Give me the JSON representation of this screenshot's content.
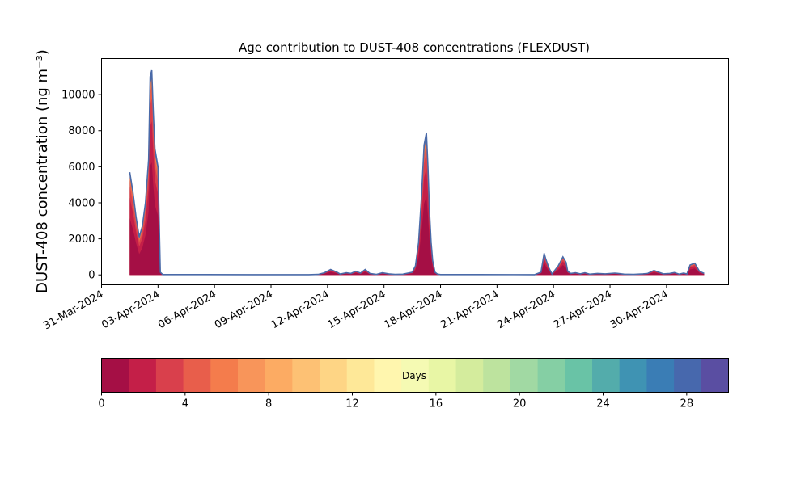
{
  "chart_data": {
    "type": "area",
    "title": "Age contribution to DUST-408 concentrations (FLEXDUST)",
    "ylabel": "DUST-408 concentration (ng m⁻³)",
    "xlabel": "",
    "xlim": [
      "2024-03-31T00:00",
      "2024-05-03T07:00"
    ],
    "ylim": [
      -550,
      12000
    ],
    "y_ticks": [
      0,
      2000,
      4000,
      6000,
      8000,
      10000
    ],
    "x_ticks": [
      "2024-03-31",
      "2024-04-03",
      "2024-04-06",
      "2024-04-09",
      "2024-04-12",
      "2024-04-15",
      "2024-04-18",
      "2024-04-21",
      "2024-04-24",
      "2024-04-27",
      "2024-04-30"
    ],
    "x_tick_labels": [
      "31-Mar-2024",
      "03-Apr-2024",
      "06-Apr-2024",
      "09-Apr-2024",
      "12-Apr-2024",
      "15-Apr-2024",
      "18-Apr-2024",
      "21-Apr-2024",
      "24-Apr-2024",
      "27-Apr-2024",
      "30-Apr-2024"
    ],
    "total_outline_color": "#4a6aa8",
    "series_layers": [
      {
        "age_days": "0-1",
        "color": "#a50f45",
        "share": 0.55
      },
      {
        "age_days": "1-2",
        "color": "#c41f48",
        "share": 0.2
      },
      {
        "age_days": "2-3",
        "color": "#d9404c",
        "share": 0.11
      },
      {
        "age_days": "3-4",
        "color": "#e85e4b",
        "share": 0.06
      },
      {
        "age_days": "4-5",
        "color": "#f47c4c",
        "share": 0.04
      },
      {
        "age_days": "5-30",
        "color": "#4a6aa8",
        "share": 0.04
      }
    ],
    "series_total": {
      "x": [
        "2024-04-01T12:00",
        "2024-04-01T16:00",
        "2024-04-01T20:00",
        "2024-04-02T00:00",
        "2024-04-02T04:00",
        "2024-04-02T08:00",
        "2024-04-02T12:00",
        "2024-04-02T14:00",
        "2024-04-02T16:00",
        "2024-04-02T18:00",
        "2024-04-02T20:00",
        "2024-04-02T22:00",
        "2024-04-03T00:00",
        "2024-04-03T03:00",
        "2024-04-03T06:00",
        "2024-04-04T00:00",
        "2024-04-08T00:00",
        "2024-04-11T00:00",
        "2024-04-11T12:00",
        "2024-04-11T15:00",
        "2024-04-11T20:00",
        "2024-04-12T04:00",
        "2024-04-12T12:00",
        "2024-04-12T16:00",
        "2024-04-13T00:00",
        "2024-04-13T06:00",
        "2024-04-13T12:00",
        "2024-04-13T18:00",
        "2024-04-14T00:00",
        "2024-04-14T06:00",
        "2024-04-14T14:00",
        "2024-04-14T22:00",
        "2024-04-15T06:00",
        "2024-04-15T14:00",
        "2024-04-16T00:00",
        "2024-04-16T12:00",
        "2024-04-16T16:00",
        "2024-04-16T20:00",
        "2024-04-17T00:00",
        "2024-04-17T03:00",
        "2024-04-17T06:00",
        "2024-04-17T08:00",
        "2024-04-17T10:00",
        "2024-04-17T12:00",
        "2024-04-17T14:00",
        "2024-04-17T17:00",
        "2024-04-17T20:00",
        "2024-04-18T00:00",
        "2024-04-20T00:00",
        "2024-04-23T00:00",
        "2024-04-23T08:00",
        "2024-04-23T12:00",
        "2024-04-23T14:00",
        "2024-04-23T18:00",
        "2024-04-23T22:00",
        "2024-04-24T06:00",
        "2024-04-24T12:00",
        "2024-04-24T16:00",
        "2024-04-24T18:00",
        "2024-04-24T22:00",
        "2024-04-25T04:00",
        "2024-04-25T10:00",
        "2024-04-25T16:00",
        "2024-04-25T22:00",
        "2024-04-26T08:00",
        "2024-04-26T18:00",
        "2024-04-27T06:00",
        "2024-04-27T18:00",
        "2024-04-28T06:00",
        "2024-04-28T18:00",
        "2024-04-29T00:00",
        "2024-04-29T08:00",
        "2024-04-29T14:00",
        "2024-04-29T20:00",
        "2024-04-30T04:00",
        "2024-04-30T10:00",
        "2024-04-30T16:00",
        "2024-04-30T22:00",
        "2024-05-01T02:00",
        "2024-05-01T06:00",
        "2024-05-01T12:00",
        "2024-05-01T18:00",
        "2024-05-02T00:00"
      ],
      "y": [
        5700,
        4600,
        3200,
        2100,
        2700,
        4000,
        6400,
        11000,
        11350,
        9000,
        7000,
        6500,
        6000,
        150,
        20,
        20,
        15,
        15,
        30,
        60,
        120,
        300,
        150,
        50,
        120,
        80,
        200,
        100,
        300,
        80,
        30,
        120,
        60,
        30,
        40,
        150,
        500,
        1800,
        4500,
        7200,
        7900,
        6000,
        3500,
        1800,
        800,
        150,
        50,
        20,
        20,
        15,
        150,
        1200,
        900,
        400,
        50,
        500,
        1000,
        700,
        200,
        80,
        120,
        60,
        120,
        40,
        80,
        60,
        100,
        40,
        30,
        60,
        80,
        250,
        150,
        60,
        80,
        130,
        40,
        100,
        50,
        550,
        650,
        200,
        80
      ]
    }
  },
  "colorbar": {
    "label": "Days",
    "min": 0,
    "max": 30,
    "ticks": [
      0,
      4,
      8,
      12,
      16,
      20,
      24,
      28
    ],
    "colors": [
      "#a50f45",
      "#c41f48",
      "#d9404c",
      "#e85e4b",
      "#f47c4c",
      "#f8955a",
      "#fcab63",
      "#fdc174",
      "#fed585",
      "#fee898",
      "#fff6ae",
      "#f5fab3",
      "#e8f6a5",
      "#d4ec9d",
      "#bde39e",
      "#a1d9a3",
      "#85cfa4",
      "#69c3a6",
      "#53acab",
      "#3f93b3",
      "#3a7db5",
      "#4768ad",
      "#5a4ea2"
    ]
  }
}
